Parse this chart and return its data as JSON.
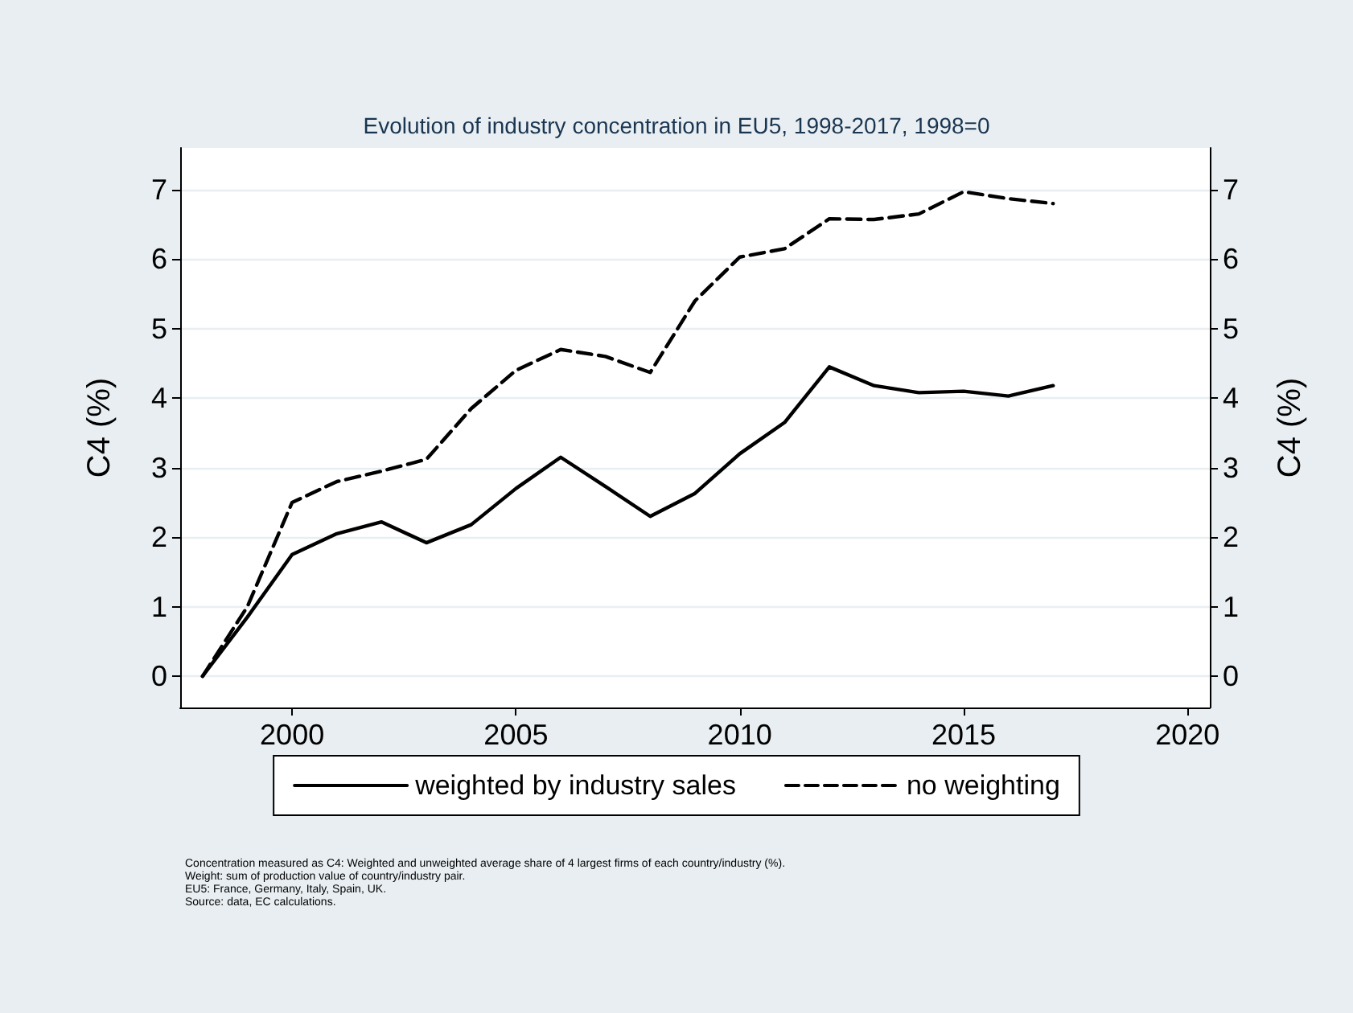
{
  "chart_data": {
    "type": "line",
    "title": "Evolution of industry concentration in EU5, 1998-2017, 1998=0",
    "ylabel": "C4 (%)",
    "y2label": "C4 (%)",
    "x": [
      1998,
      1999,
      2000,
      2001,
      2002,
      2003,
      2004,
      2005,
      2006,
      2007,
      2008,
      2009,
      2010,
      2011,
      2012,
      2013,
      2014,
      2015,
      2016,
      2017
    ],
    "series": [
      {
        "name": "weighted by industry sales",
        "color": "#000000",
        "line_style": "solid",
        "values": [
          0,
          0.85,
          1.75,
          2.05,
          2.22,
          1.92,
          2.18,
          2.7,
          3.15,
          2.73,
          2.3,
          2.63,
          3.2,
          3.65,
          4.45,
          4.18,
          4.08,
          4.1,
          4.03,
          4.18
        ]
      },
      {
        "name": "no weighting",
        "color": "#000000",
        "line_style": "dashed",
        "values": [
          0,
          1.0,
          2.5,
          2.8,
          2.95,
          3.12,
          3.85,
          4.4,
          4.7,
          4.6,
          4.37,
          5.4,
          6.03,
          6.15,
          6.58,
          6.57,
          6.65,
          6.97,
          6.87,
          6.8
        ]
      }
    ],
    "xlim": [
      1997.5,
      2020.5
    ],
    "xticks": [
      2000,
      2005,
      2010,
      2015,
      2020
    ],
    "ylim": [
      -0.45,
      7.6
    ],
    "yticks": [
      0,
      1,
      2,
      3,
      4,
      5,
      6,
      7
    ],
    "y2lim": [
      -0.45,
      7.6
    ],
    "y2ticks": [
      0,
      1,
      2,
      3,
      4,
      5,
      6,
      7
    ],
    "grid": "y",
    "legend": "bottom",
    "marker": "none",
    "annotations": [
      "Concentration measured as C4: Weighted and unweighted average share of 4 largest firms of each country/industry (%).",
      "Weight: sum of production value of country/industry pair.",
      "EU5: France, Germany, Italy, Spain, UK.",
      "Source: data, EC calculations."
    ]
  }
}
